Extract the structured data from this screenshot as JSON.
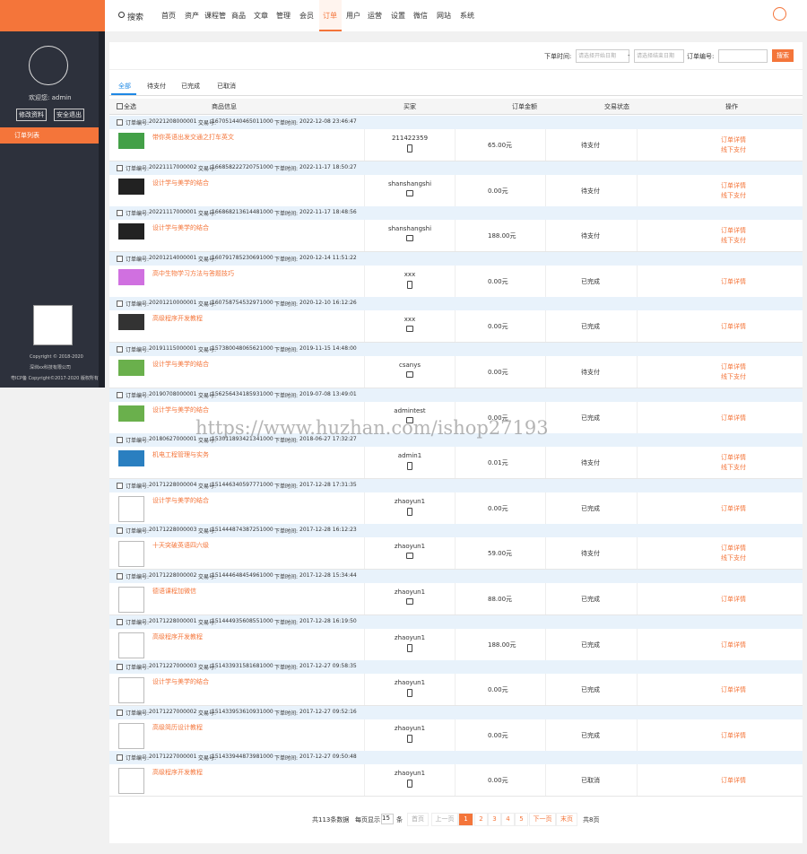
{
  "sidebar": {
    "welcome": "欢迎您: admin",
    "buttons": [
      "修改资料",
      "安全退出"
    ],
    "menu": [
      "订单列表"
    ],
    "footer": [
      "Copyright © 2018-2020",
      "深圳xx科技有限公司",
      "粤ICP备 Copyright©2017-2020 版权所有"
    ]
  },
  "topnav": {
    "search": "搜索",
    "items": [
      "首页",
      "资产",
      "课程管",
      "商品",
      "文章",
      "管理",
      "会员",
      "订单",
      "用户",
      "运营",
      "设置",
      "微信",
      "网站",
      "系统"
    ],
    "active": 7
  },
  "filter": {
    "time_label": "下单时间:",
    "start_placeholder": "请选择开始日期",
    "dash": "-",
    "end_placeholder": "请选择结束日期",
    "order_label": "订单编号:",
    "button": "搜索"
  },
  "tabs": {
    "items": [
      "全部",
      "待支付",
      "已完成",
      "已取消"
    ],
    "active": 0
  },
  "table": {
    "columns": [
      "全选",
      "商品信息",
      "买家",
      "订单金额",
      "交易状态",
      "操作"
    ],
    "labels": {
      "order_no": "订单编号:",
      "trade_no": "交易号:",
      "time": "下单时间:"
    },
    "rows": [
      {
        "order_no": "20221208000001",
        "trade_no": "167051440465011000",
        "time": "2022-12-08 23:46:47",
        "product": "带你英语出发交通之打车英文",
        "buyer": "211422359",
        "device": "phone",
        "amount": "65.00元",
        "status": "待支付",
        "actions": [
          "订单详情",
          "线下支付"
        ]
      },
      {
        "order_no": "20221117000002",
        "trade_no": "166858222720751000",
        "time": "2022-11-17 18:50:27",
        "product": "设计学与美学的结合",
        "buyer": "shanshangshi",
        "device": "pc",
        "amount": "0.00元",
        "status": "待支付",
        "actions": [
          "订单详情",
          "线下支付"
        ]
      },
      {
        "order_no": "20221117000001",
        "trade_no": "166868213614481000",
        "time": "2022-11-17 18:48:56",
        "product": "设计学与美学的结合",
        "buyer": "shanshangshi",
        "device": "pc",
        "amount": "188.00元",
        "status": "待支付",
        "actions": [
          "订单详情",
          "线下支付"
        ]
      },
      {
        "order_no": "20201214000001",
        "trade_no": "160791785230691000",
        "time": "2020-12-14 11:51:22",
        "product": "高中生物学习方法与答题技巧",
        "buyer": "xxx",
        "device": "phone",
        "amount": "0.00元",
        "status": "已完成",
        "actions": [
          "订单详情"
        ]
      },
      {
        "order_no": "20201210000001",
        "trade_no": "160758754532971000",
        "time": "2020-12-10 16:12:26",
        "product": "高级程序开发教程",
        "buyer": "xxx",
        "device": "pc",
        "amount": "0.00元",
        "status": "已完成",
        "actions": [
          "订单详情"
        ]
      },
      {
        "order_no": "20191115000001",
        "trade_no": "157380048065621000",
        "time": "2019-11-15 14:48:00",
        "product": "设计学与美学的结合",
        "buyer": "csanys",
        "device": "pc",
        "amount": "0.00元",
        "status": "待支付",
        "actions": [
          "订单详情",
          "线下支付"
        ]
      },
      {
        "order_no": "20190708000001",
        "trade_no": "156256434185931000",
        "time": "2019-07-08 13:49:01",
        "product": "设计学与美学的结合",
        "buyer": "admintest",
        "device": "pc",
        "amount": "0.00元",
        "status": "已完成",
        "actions": [
          "订单详情"
        ]
      },
      {
        "order_no": "20180627000001",
        "trade_no": "153011893421341000",
        "time": "2018-06-27 17:32:27",
        "product": "机电工程管理与实务",
        "buyer": "admin1",
        "device": "phone",
        "amount": "0.01元",
        "status": "待支付",
        "actions": [
          "订单详情",
          "线下支付"
        ]
      },
      {
        "order_no": "20171228000004",
        "trade_no": "151446340597771000",
        "time": "2017-12-28 17:31:35",
        "product": "设计学与美学的结合",
        "buyer": "zhaoyun1",
        "device": "phone",
        "amount": "0.00元",
        "status": "已完成",
        "actions": [
          "订单详情"
        ]
      },
      {
        "order_no": "20171228000003",
        "trade_no": "151444874387251000",
        "time": "2017-12-28 16:12:23",
        "product": "十天突破英语四六级",
        "buyer": "zhaoyun1",
        "device": "pc",
        "amount": "59.00元",
        "status": "待支付",
        "actions": [
          "订单详情",
          "线下支付"
        ]
      },
      {
        "order_no": "20171228000002",
        "trade_no": "151444648454961000",
        "time": "2017-12-28 15:34:44",
        "product": "德语课程加微信",
        "buyer": "zhaoyun1",
        "device": "pc",
        "amount": "88.00元",
        "status": "已完成",
        "actions": [
          "订单详情"
        ]
      },
      {
        "order_no": "20171228000001",
        "trade_no": "151444935608551000",
        "time": "2017-12-28 16:19:50",
        "product": "高级程序开发教程",
        "buyer": "zhaoyun1",
        "device": "phone",
        "amount": "188.00元",
        "status": "已完成",
        "actions": [
          "订单详情"
        ]
      },
      {
        "order_no": "20171227000003",
        "trade_no": "151433931581681000",
        "time": "2017-12-27 09:58:35",
        "product": "设计学与美学的结合",
        "buyer": "zhaoyun1",
        "device": "phone",
        "amount": "0.00元",
        "status": "已完成",
        "actions": [
          "订单详情"
        ]
      },
      {
        "order_no": "20171227000002",
        "trade_no": "151433953610931000",
        "time": "2017-12-27 09:52:16",
        "product": "高级简历设计教程",
        "buyer": "zhaoyun1",
        "device": "phone",
        "amount": "0.00元",
        "status": "已完成",
        "actions": [
          "订单详情"
        ]
      },
      {
        "order_no": "20171227000001",
        "trade_no": "151433944873981000",
        "time": "2017-12-27 09:50:48",
        "product": "高级程序开发教程",
        "buyer": "zhaoyun1",
        "device": "phone",
        "amount": "0.00元",
        "status": "已取消",
        "actions": [
          "订单详情"
        ]
      }
    ]
  },
  "pagination": {
    "total": "共113条数据",
    "per_page_label": "每页显示",
    "per_page": "15",
    "per_page_unit": "条",
    "buttons": [
      "首页",
      "上一页",
      "1",
      "2",
      "3",
      "4",
      "5",
      "下一页",
      "末页"
    ],
    "active": 2,
    "pages": "共8页"
  },
  "watermark": "https://www.huzhan.com/ishop27193"
}
